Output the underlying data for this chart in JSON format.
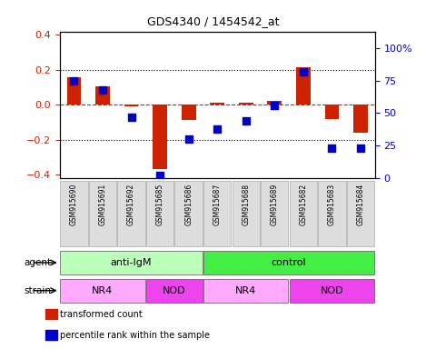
{
  "title": "GDS4340 / 1454542_at",
  "samples": [
    "GSM915690",
    "GSM915691",
    "GSM915692",
    "GSM915685",
    "GSM915686",
    "GSM915687",
    "GSM915688",
    "GSM915689",
    "GSM915682",
    "GSM915683",
    "GSM915684"
  ],
  "red_values": [
    0.155,
    0.105,
    -0.01,
    -0.37,
    -0.09,
    0.01,
    0.01,
    0.02,
    0.215,
    -0.08,
    -0.16
  ],
  "blue_values": [
    75,
    68,
    47,
    2,
    30,
    38,
    44,
    56,
    82,
    23,
    23
  ],
  "ylim_left": [
    -0.42,
    0.42
  ],
  "ylim_right": [
    0,
    113
  ],
  "yticks_left": [
    -0.4,
    -0.2,
    0.0,
    0.2,
    0.4
  ],
  "yticks_right": [
    0,
    25,
    50,
    75,
    100
  ],
  "ytick_labels_right": [
    "0",
    "25",
    "50",
    "75",
    "100%"
  ],
  "red_color": "#cc2200",
  "blue_color": "#0000cc",
  "bar_width": 0.5,
  "dot_size": 40,
  "agent_groups": [
    {
      "label": "anti-IgM",
      "start": 0,
      "end": 4,
      "color": "#bbffbb"
    },
    {
      "label": "control",
      "start": 5,
      "end": 10,
      "color": "#44ee44"
    }
  ],
  "strain_groups": [
    {
      "label": "NR4",
      "start": 0,
      "end": 2,
      "color": "#ffaaff"
    },
    {
      "label": "NOD",
      "start": 3,
      "end": 4,
      "color": "#ee44ee"
    },
    {
      "label": "NR4",
      "start": 5,
      "end": 7,
      "color": "#ffaaff"
    },
    {
      "label": "NOD",
      "start": 8,
      "end": 10,
      "color": "#ee44ee"
    }
  ],
  "legend_items": [
    {
      "label": "transformed count",
      "color": "#cc2200"
    },
    {
      "label": "percentile rank within the sample",
      "color": "#0000cc"
    }
  ],
  "agent_label": "agent",
  "strain_label": "strain",
  "tick_bg_color": "#dddddd",
  "plot_bg_color": "#ffffff"
}
